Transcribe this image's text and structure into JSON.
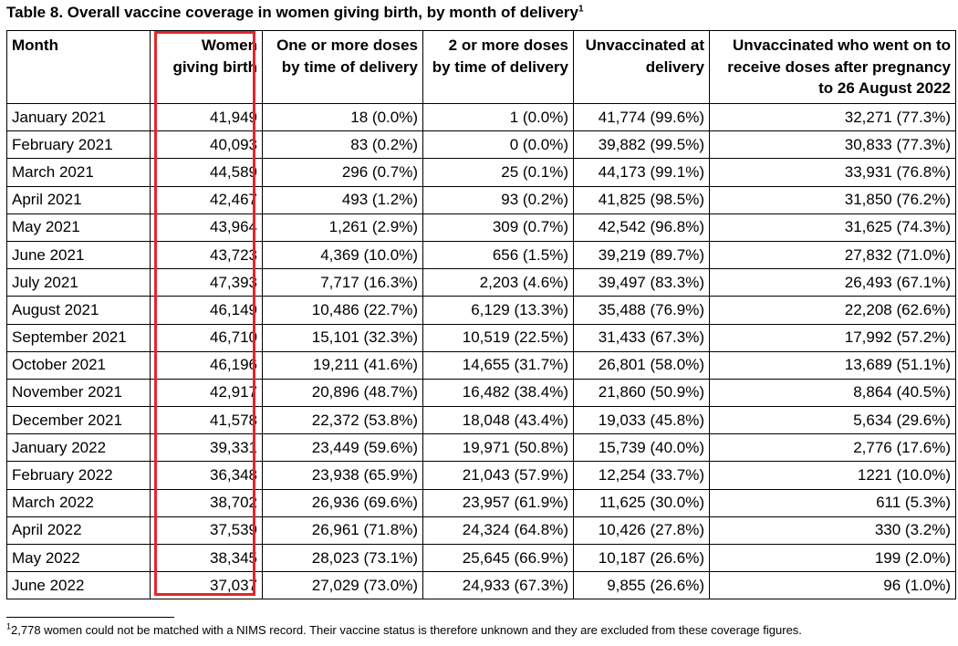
{
  "caption": {
    "title": "Table 8. Overall vaccine coverage in women giving birth, by month of delivery",
    "footnote_ref": "1"
  },
  "colors": {
    "highlight": "#e3262b"
  },
  "table": {
    "headers": [
      "Month",
      "Women giving birth",
      "One or more doses by time of delivery",
      "2 or more doses by time of delivery",
      "Unvaccinated at delivery",
      "Unvaccinated who went on to receive doses after pregnancy to 26 August 2022"
    ],
    "rows": [
      [
        "January 2021",
        "41,949",
        "18 (0.0%)",
        "1 (0.0%)",
        "41,774 (99.6%)",
        "32,271 (77.3%)"
      ],
      [
        "February 2021",
        "40,093",
        "83 (0.2%)",
        "0 (0.0%)",
        "39,882 (99.5%)",
        "30,833 (77.3%)"
      ],
      [
        "March 2021",
        "44,589",
        "296 (0.7%)",
        "25 (0.1%)",
        "44,173 (99.1%)",
        "33,931 (76.8%)"
      ],
      [
        "April 2021",
        "42,467",
        "493 (1.2%)",
        "93 (0.2%)",
        "41,825 (98.5%)",
        "31,850 (76.2%)"
      ],
      [
        "May 2021",
        "43,964",
        "1,261 (2.9%)",
        "309 (0.7%)",
        "42,542 (96.8%)",
        "31,625 (74.3%)"
      ],
      [
        "June 2021",
        "43,723",
        "4,369 (10.0%)",
        "656 (1.5%)",
        "39,219 (89.7%)",
        "27,832 (71.0%)"
      ],
      [
        "July 2021",
        "47,393",
        "7,717 (16.3%)",
        "2,203 (4.6%)",
        "39,497 (83.3%)",
        "26,493 (67.1%)"
      ],
      [
        "August 2021",
        "46,149",
        "10,486 (22.7%)",
        "6,129 (13.3%)",
        "35,488 (76.9%)",
        "22,208 (62.6%)"
      ],
      [
        "September 2021",
        "46,710",
        "15,101 (32.3%)",
        "10,519 (22.5%)",
        "31,433 (67.3%)",
        "17,992 (57.2%)"
      ],
      [
        "October 2021",
        "46,196",
        "19,211 (41.6%)",
        "14,655 (31.7%)",
        "26,801 (58.0%)",
        "13,689 (51.1%)"
      ],
      [
        "November 2021",
        "42,917",
        "20,896 (48.7%)",
        "16,482 (38.4%)",
        "21,860 (50.9%)",
        "8,864 (40.5%)"
      ],
      [
        "December 2021",
        "41,578",
        "22,372 (53.8%)",
        "18,048 (43.4%)",
        "19,033 (45.8%)",
        "5,634 (29.6%)"
      ],
      [
        "January 2022",
        "39,331",
        "23,449 (59.6%)",
        "19,971 (50.8%)",
        "15,739 (40.0%)",
        "2,776 (17.6%)"
      ],
      [
        "February 2022",
        "36,348",
        "23,938 (65.9%)",
        "21,043 (57.9%)",
        "12,254 (33.7%)",
        "1221 (10.0%)"
      ],
      [
        "March 2022",
        "38,702",
        "26,936 (69.6%)",
        "23,957 (61.9%)",
        "11,625 (30.0%)",
        "611 (5.3%)"
      ],
      [
        "April 2022",
        "37,539",
        "26,961 (71.8%)",
        "24,324 (64.8%)",
        "10,426 (27.8%)",
        "330 (3.2%)"
      ],
      [
        "May 2022",
        "38,345",
        "28,023 (73.1%)",
        "25,645 (66.9%)",
        "10,187 (26.6%)",
        "199 (2.0%)"
      ],
      [
        "June 2022",
        "37,037",
        "27,029 (73.0%)",
        "24,933 (67.3%)",
        "9,855 (26.6%)",
        "96 (1.0%)"
      ]
    ]
  },
  "footnote": {
    "marker": "1",
    "text": "2,778 women could not be matched with a NIMS record. Their vaccine status is therefore unknown and they are excluded from these coverage figures."
  }
}
